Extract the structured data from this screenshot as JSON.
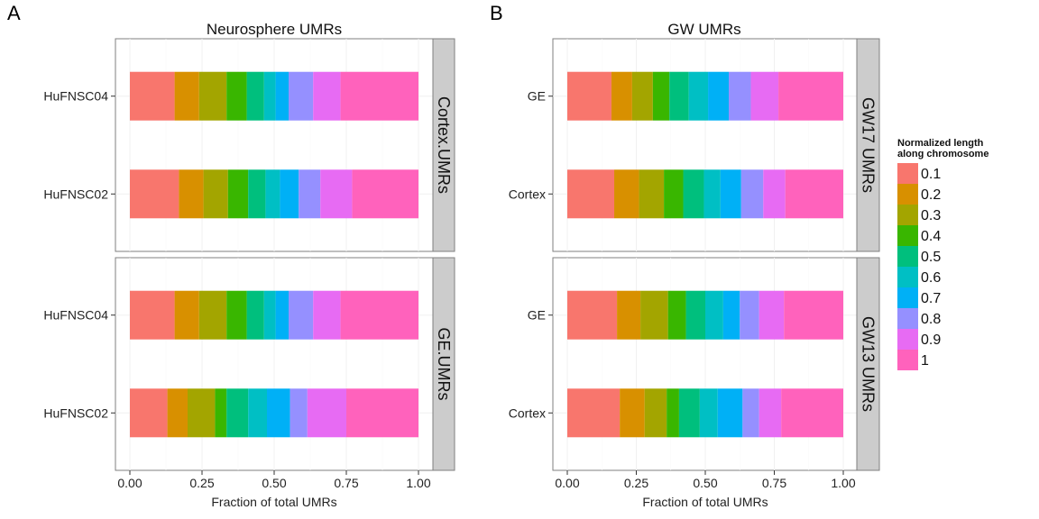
{
  "chart_data": [
    {
      "type": "bar",
      "orientation": "horizontal",
      "stacked": true,
      "panel_letter": "A",
      "title": "Neurosphere UMRs",
      "xlabel": "Fraction of total UMRs",
      "ylabel": "",
      "xlim": [
        0,
        1
      ],
      "x_ticks": [
        "0.00",
        "0.25",
        "0.50",
        "0.75",
        "1.00"
      ],
      "grid": true,
      "facets": [
        {
          "label": "Cortex.UMRs",
          "categories": [
            "HuFNSC04",
            "HuFNSC02"
          ],
          "segments": [
            [
              0.155,
              0.085,
              0.095,
              0.07,
              0.06,
              0.04,
              0.045,
              0.085,
              0.095,
              0.27
            ],
            [
              0.17,
              0.085,
              0.085,
              0.07,
              0.06,
              0.05,
              0.065,
              0.075,
              0.11,
              0.23
            ]
          ]
        },
        {
          "label": "GE.UMRs",
          "categories": [
            "HuFNSC04",
            "HuFNSC02"
          ],
          "segments": [
            [
              0.155,
              0.085,
              0.095,
              0.07,
              0.06,
              0.04,
              0.045,
              0.085,
              0.095,
              0.27
            ],
            [
              0.13,
              0.07,
              0.095,
              0.04,
              0.075,
              0.065,
              0.08,
              0.06,
              0.135,
              0.25
            ]
          ]
        }
      ]
    },
    {
      "type": "bar",
      "orientation": "horizontal",
      "stacked": true,
      "panel_letter": "B",
      "title": "GW UMRs",
      "xlabel": "Fraction of total UMRs",
      "ylabel": "",
      "xlim": [
        0,
        1
      ],
      "x_ticks": [
        "0.00",
        "0.25",
        "0.50",
        "0.75",
        "1.00"
      ],
      "grid": true,
      "facets": [
        {
          "label": "GW17 UMRs",
          "categories": [
            "GE",
            "Cortex"
          ],
          "segments": [
            [
              0.16,
              0.075,
              0.075,
              0.06,
              0.07,
              0.07,
              0.075,
              0.08,
              0.1,
              0.235
            ],
            [
              0.17,
              0.09,
              0.09,
              0.07,
              0.075,
              0.06,
              0.075,
              0.08,
              0.08,
              0.21
            ]
          ]
        },
        {
          "label": "GW13 UMRs",
          "categories": [
            "GE",
            "Cortex"
          ],
          "segments": [
            [
              0.18,
              0.085,
              0.1,
              0.065,
              0.07,
              0.065,
              0.06,
              0.07,
              0.09,
              0.215
            ],
            [
              0.19,
              0.09,
              0.08,
              0.045,
              0.075,
              0.065,
              0.09,
              0.06,
              0.08,
              0.225
            ]
          ]
        }
      ]
    }
  ],
  "legend": {
    "title_lines": [
      "Normalized length",
      "along chromosome"
    ],
    "placement": "right",
    "items": [
      {
        "label": "0.1",
        "color": "#F8766D"
      },
      {
        "label": "0.2",
        "color": "#D89000"
      },
      {
        "label": "0.3",
        "color": "#A3A500"
      },
      {
        "label": "0.4",
        "color": "#39B600"
      },
      {
        "label": "0.5",
        "color": "#00BF7D"
      },
      {
        "label": "0.6",
        "color": "#00BFC4"
      },
      {
        "label": "0.7",
        "color": "#00B0F6"
      },
      {
        "label": "0.8",
        "color": "#9590FF"
      },
      {
        "label": "0.9",
        "color": "#E76BF3"
      },
      {
        "label": "1",
        "color": "#FF62BC"
      }
    ]
  }
}
